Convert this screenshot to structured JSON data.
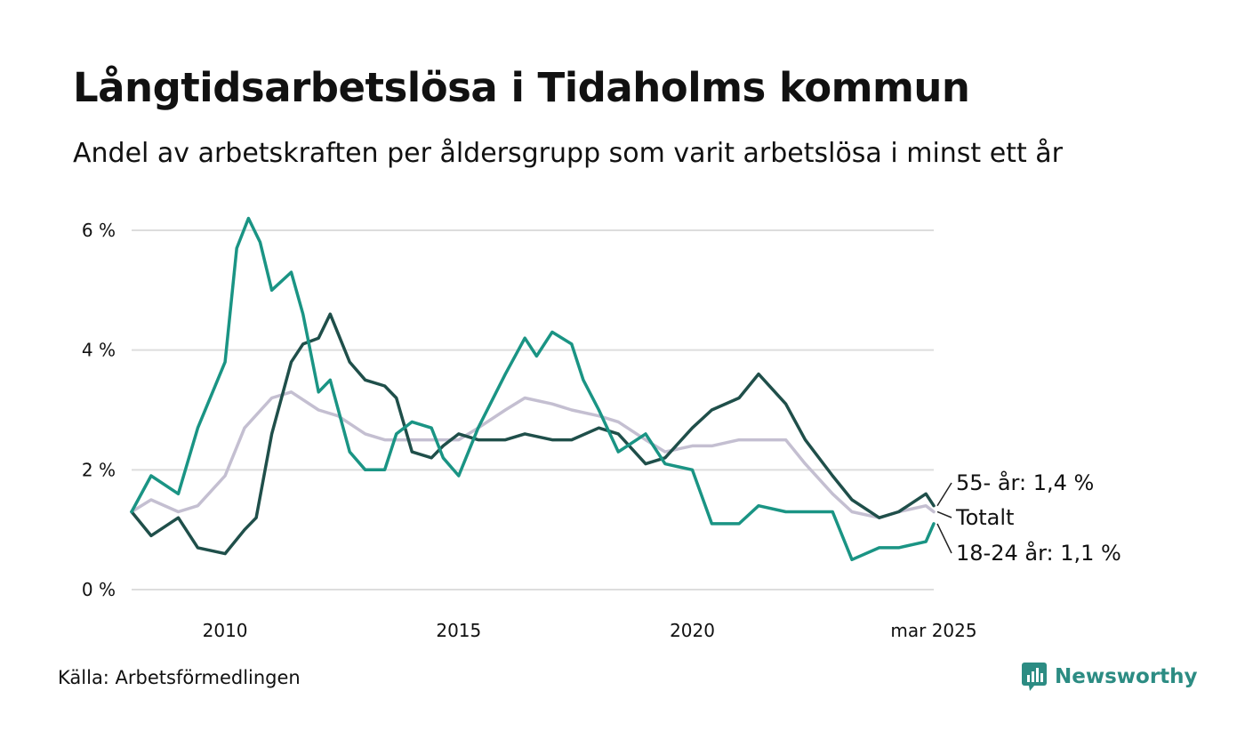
{
  "header": {
    "title": "Långtidsarbetslösa i Tidaholms kommun",
    "subtitle": "Andel av arbetskraften per åldersgrupp som varit arbetslösa i minst ett år"
  },
  "footer": {
    "source": "Källa: Arbetsförmedlingen",
    "brand": "Newsworthy"
  },
  "colors": {
    "age_55": "#1f4f4a",
    "total": "#c4bfd1",
    "age_18_24": "#1a9484",
    "grid": "#dddddd",
    "brand": "#2c8c83"
  },
  "chart_data": {
    "type": "line",
    "title": "Långtidsarbetslösa i Tidaholms kommun",
    "subtitle": "Andel av arbetskraften per åldersgrupp som varit arbetslösa i minst ett år",
    "xlabel": "",
    "ylabel": "",
    "y_unit": "%",
    "ylim": [
      0,
      6.4
    ],
    "y_ticks": [
      0,
      2,
      4,
      6
    ],
    "y_tick_labels": [
      "0 %",
      "2 %",
      "4 %",
      "6 %"
    ],
    "x_range": [
      "2008-01",
      "2025-03"
    ],
    "x_ticks": [
      "2010-01",
      "2015-01",
      "2020-01",
      "2025-03"
    ],
    "x_tick_labels": [
      "2010",
      "2015",
      "2020",
      "mar 2025"
    ],
    "grid": true,
    "legend": "end-labels-right",
    "end_labels": [
      "55- år: 1,4 %",
      "Totalt",
      "18-24 år: 1,1 %"
    ],
    "series": [
      {
        "name": "55- år",
        "end_label": "55- år: 1,4 %",
        "x": [
          "2008-01",
          "2008-06",
          "2009-01",
          "2009-06",
          "2010-01",
          "2010-06",
          "2010-09",
          "2011-01",
          "2011-06",
          "2011-09",
          "2012-01",
          "2012-04",
          "2012-09",
          "2013-01",
          "2013-06",
          "2013-09",
          "2014-01",
          "2014-06",
          "2014-09",
          "2015-01",
          "2015-06",
          "2016-01",
          "2016-06",
          "2017-01",
          "2017-06",
          "2018-01",
          "2018-06",
          "2019-01",
          "2019-06",
          "2020-01",
          "2020-06",
          "2021-01",
          "2021-06",
          "2022-01",
          "2022-06",
          "2023-01",
          "2023-06",
          "2024-01",
          "2024-06",
          "2025-01",
          "2025-03"
        ],
        "values": [
          1.3,
          0.9,
          1.2,
          0.7,
          0.6,
          1.0,
          1.2,
          2.6,
          3.8,
          4.1,
          4.2,
          4.6,
          3.8,
          3.5,
          3.4,
          3.2,
          2.3,
          2.2,
          2.4,
          2.6,
          2.5,
          2.5,
          2.6,
          2.5,
          2.5,
          2.7,
          2.6,
          2.1,
          2.2,
          2.7,
          3.0,
          3.2,
          3.6,
          3.1,
          2.5,
          1.9,
          1.5,
          1.2,
          1.3,
          1.6,
          1.4
        ]
      },
      {
        "name": "Totalt",
        "end_label": "Totalt",
        "x": [
          "2008-01",
          "2008-06",
          "2009-01",
          "2009-06",
          "2010-01",
          "2010-06",
          "2011-01",
          "2011-06",
          "2012-01",
          "2012-06",
          "2013-01",
          "2013-06",
          "2014-01",
          "2014-06",
          "2015-01",
          "2015-06",
          "2016-01",
          "2016-06",
          "2017-01",
          "2017-06",
          "2018-01",
          "2018-06",
          "2019-01",
          "2019-06",
          "2020-01",
          "2020-06",
          "2021-01",
          "2021-06",
          "2022-01",
          "2022-06",
          "2023-01",
          "2023-06",
          "2024-01",
          "2024-06",
          "2025-01",
          "2025-03"
        ],
        "values": [
          1.3,
          1.5,
          1.3,
          1.4,
          1.9,
          2.7,
          3.2,
          3.3,
          3.0,
          2.9,
          2.6,
          2.5,
          2.5,
          2.5,
          2.5,
          2.7,
          3.0,
          3.2,
          3.1,
          3.0,
          2.9,
          2.8,
          2.5,
          2.3,
          2.4,
          2.4,
          2.5,
          2.5,
          2.5,
          2.1,
          1.6,
          1.3,
          1.2,
          1.3,
          1.4,
          1.3
        ]
      },
      {
        "name": "18-24 år",
        "end_label": "18-24 år: 1,1 %",
        "x": [
          "2008-01",
          "2008-06",
          "2009-01",
          "2009-06",
          "2010-01",
          "2010-04",
          "2010-07",
          "2010-10",
          "2011-01",
          "2011-06",
          "2011-09",
          "2012-01",
          "2012-04",
          "2012-09",
          "2013-01",
          "2013-06",
          "2013-09",
          "2014-01",
          "2014-06",
          "2014-09",
          "2015-01",
          "2015-06",
          "2016-01",
          "2016-06",
          "2016-09",
          "2017-01",
          "2017-06",
          "2017-09",
          "2018-01",
          "2018-06",
          "2019-01",
          "2019-06",
          "2020-01",
          "2020-06",
          "2021-01",
          "2021-06",
          "2022-01",
          "2022-06",
          "2023-01",
          "2023-06",
          "2024-01",
          "2024-06",
          "2025-01",
          "2025-03"
        ],
        "values": [
          1.3,
          1.9,
          1.6,
          2.7,
          3.8,
          5.7,
          6.2,
          5.8,
          5.0,
          5.3,
          4.6,
          3.3,
          3.5,
          2.3,
          2.0,
          2.0,
          2.6,
          2.8,
          2.7,
          2.2,
          1.9,
          2.7,
          3.6,
          4.2,
          3.9,
          4.3,
          4.1,
          3.5,
          3.0,
          2.3,
          2.6,
          2.1,
          2.0,
          1.1,
          1.1,
          1.4,
          1.3,
          1.3,
          1.3,
          0.5,
          0.7,
          0.7,
          0.8,
          1.1
        ]
      }
    ]
  }
}
